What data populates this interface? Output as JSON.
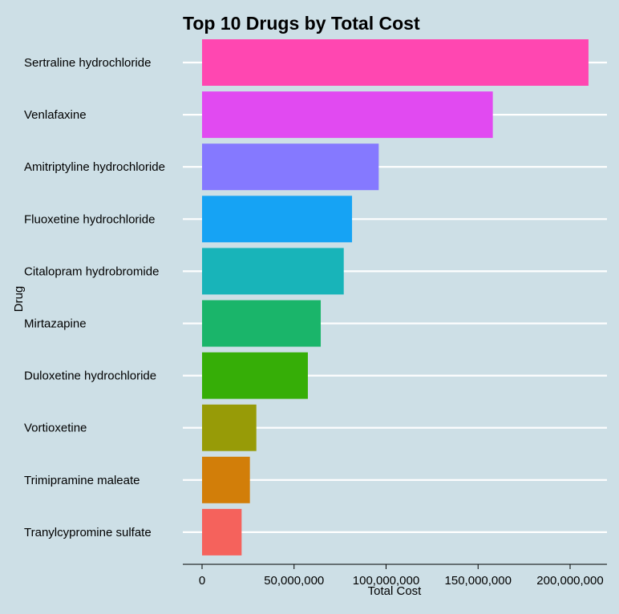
{
  "chart_data": {
    "type": "bar",
    "orientation": "horizontal",
    "title": "Top 10 Drugs by Total Cost",
    "xlabel": "Total Cost",
    "ylabel": "Drug",
    "categories": [
      "Sertraline hydrochloride",
      "Venlafaxine",
      "Amitriptyline hydrochloride",
      "Fluoxetine hydrochloride",
      "Citalopram hydrobromide",
      "Mirtazapine",
      "Duloxetine hydrochloride",
      "Vortioxetine",
      "Trimipramine maleate",
      "Tranylcypromine sulfate"
    ],
    "values": [
      210000000,
      158000000,
      96000000,
      81500000,
      77000000,
      64500000,
      57500000,
      29500000,
      26000000,
      21500000
    ],
    "colors": [
      "#ff47b1",
      "#e14af1",
      "#8579ff",
      "#16a3f4",
      "#18b4b9",
      "#1ab56a",
      "#36ae07",
      "#979b07",
      "#d27e09",
      "#f5625c"
    ],
    "xlim": [
      0,
      210000000
    ],
    "xticks": [
      0,
      50000000,
      100000000,
      150000000,
      200000000
    ],
    "xtick_labels": [
      "0",
      "50,000,000",
      "100,000,000",
      "150,000,000",
      "200,000,000"
    ],
    "grid": "horizontal",
    "legend": "none",
    "background": "#cddfe6",
    "grid_color": "#ffffff"
  }
}
